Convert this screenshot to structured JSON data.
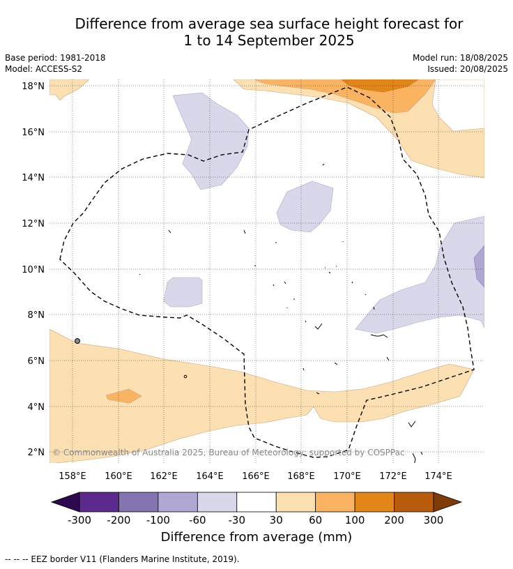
{
  "title_line1": "Difference from average sea surface height forecast for",
  "title_line2": "1 to 14 September 2025",
  "base_period": "Base period: 1981-2018",
  "model": "Model: ACCESS-S2",
  "model_run": "Model run: 18/08/2025",
  "issued": "Issued: 20/08/2025",
  "copyright": "© Commonwealth of Australia 2025, Bureau of Meteorology; supported by COSPPac",
  "lon_labels": [
    "158°E",
    "160°E",
    "162°E",
    "164°E",
    "166°E",
    "168°E",
    "170°E",
    "172°E",
    "174°E"
  ],
  "lat_labels": [
    "18°N",
    "16°N",
    "14°N",
    "12°N",
    "10°N",
    "8°N",
    "6°N",
    "4°N",
    "2°N"
  ],
  "colorbar": {
    "ticks": [
      "-300",
      "-200",
      "-100",
      "-60",
      "-30",
      "30",
      "60",
      "100",
      "200",
      "300"
    ],
    "colors": [
      "#5b2a8c",
      "#8475b2",
      "#b0a8d2",
      "#d8d8ea",
      "#ffffff",
      "#fde0b2",
      "#fab461",
      "#e38619",
      "#b75c0d"
    ],
    "under_color": "#2d0a4e",
    "over_color": "#7f3b08",
    "label": "Difference from average (mm)"
  },
  "footnote": "--  --  -- EEZ border V11 (Flanders Marine Institute, 2019)."
}
